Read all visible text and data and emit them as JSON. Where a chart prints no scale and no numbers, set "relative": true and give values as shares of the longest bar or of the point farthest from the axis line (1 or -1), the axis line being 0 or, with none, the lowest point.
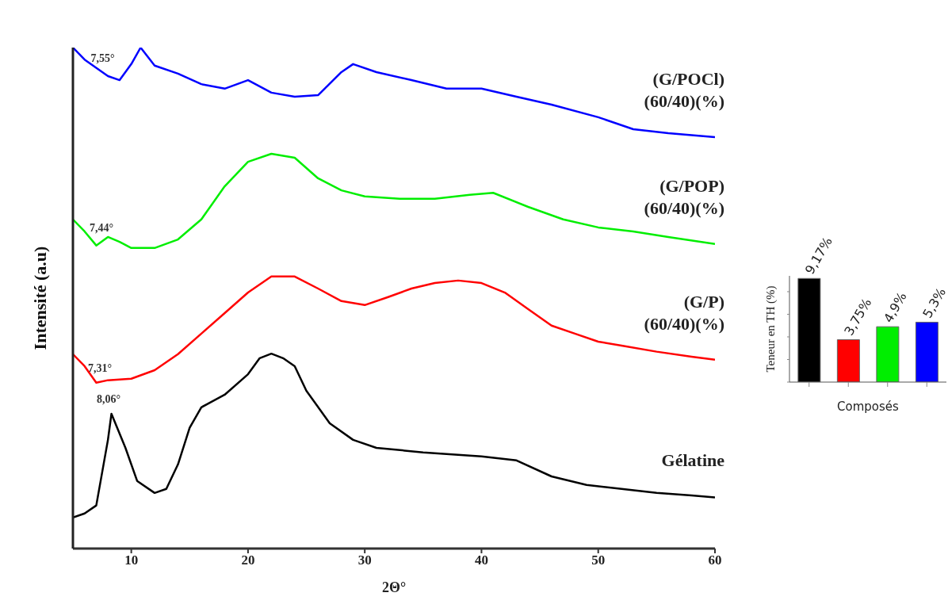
{
  "chart_data": [
    {
      "type": "line",
      "xlabel": "2Θ°",
      "ylabel": "Intensité (a.u)",
      "relative": true,
      "xlim": [
        5,
        60
      ],
      "xticks": [
        10,
        20,
        30,
        40,
        50,
        60
      ],
      "tick_labels": "x",
      "series": [
        {
          "name": "(G/POCl) (60/40)(%)",
          "color": "#0000ff",
          "x": [
            5,
            6,
            8,
            9,
            10,
            10.8,
            12,
            14,
            16,
            18,
            20,
            22,
            24,
            26,
            28,
            29,
            31,
            34,
            37,
            40,
            43,
            46,
            50,
            53,
            56,
            60
          ],
          "values": [
            1.0,
            0.976,
            0.943,
            0.935,
            0.967,
            1.0,
            0.964,
            0.948,
            0.927,
            0.918,
            0.935,
            0.91,
            0.902,
            0.905,
            0.951,
            0.967,
            0.951,
            0.935,
            0.918,
            0.918,
            0.902,
            0.886,
            0.861,
            0.837,
            0.829,
            0.821
          ]
        },
        {
          "name": "(G/POP) (60/40)(%)",
          "color": "#00ee00",
          "x": [
            5,
            6,
            7,
            8,
            9,
            10,
            12,
            14,
            16,
            18,
            20,
            22,
            24,
            26,
            28,
            30,
            33,
            36,
            39,
            41,
            44,
            47,
            50,
            53,
            56,
            60
          ],
          "values": [
            0.657,
            0.633,
            0.605,
            0.622,
            0.612,
            0.6,
            0.6,
            0.617,
            0.657,
            0.723,
            0.772,
            0.788,
            0.78,
            0.739,
            0.715,
            0.703,
            0.698,
            0.698,
            0.706,
            0.71,
            0.682,
            0.657,
            0.641,
            0.633,
            0.622,
            0.608
          ]
        },
        {
          "name": "(G/P) (60/40)(%)",
          "color": "#ff0000",
          "x": [
            5,
            6,
            7,
            8,
            10,
            12,
            14,
            16,
            18,
            20,
            22,
            24,
            26,
            28,
            30,
            32,
            34,
            36,
            38,
            40,
            42,
            44,
            46,
            48,
            50,
            52,
            55,
            58,
            60
          ],
          "values": [
            0.388,
            0.364,
            0.331,
            0.336,
            0.339,
            0.356,
            0.388,
            0.429,
            0.47,
            0.511,
            0.543,
            0.543,
            0.519,
            0.494,
            0.486,
            0.502,
            0.519,
            0.53,
            0.535,
            0.53,
            0.511,
            0.478,
            0.445,
            0.429,
            0.413,
            0.405,
            0.393,
            0.383,
            0.377
          ]
        },
        {
          "name": "Gélatine",
          "color": "#000000",
          "x": [
            5,
            6,
            7,
            8,
            8.3,
            9.5,
            10.5,
            12,
            13,
            14,
            15,
            16,
            18,
            20,
            21,
            22,
            23,
            24,
            25,
            27,
            29,
            31,
            35,
            40,
            43,
            46,
            49,
            52,
            55,
            58,
            60
          ],
          "values": [
            0.062,
            0.07,
            0.086,
            0.217,
            0.269,
            0.201,
            0.135,
            0.111,
            0.119,
            0.168,
            0.241,
            0.282,
            0.307,
            0.348,
            0.38,
            0.389,
            0.38,
            0.364,
            0.315,
            0.25,
            0.217,
            0.201,
            0.192,
            0.184,
            0.176,
            0.144,
            0.127,
            0.119,
            0.111,
            0.106,
            0.102
          ]
        }
      ],
      "annotations": [
        {
          "text": "7,55°",
          "x": 7.55,
          "y": 0.95
        },
        {
          "text": "7,44°",
          "x": 7.44,
          "y": 0.61
        },
        {
          "text": "7,31°",
          "x": 7.31,
          "y": 0.33
        },
        {
          "text": "8,06°",
          "x": 8.06,
          "y": 0.269
        }
      ]
    },
    {
      "type": "bar",
      "xlabel": "Composés",
      "ylabel": "Teneur en TH (%)",
      "categories": [
        null,
        null,
        null,
        null
      ],
      "values": [
        9.17,
        3.75,
        4.9,
        5.3
      ],
      "colors": [
        "#000000",
        "#ff0000",
        "#00ee00",
        "#0000ff"
      ],
      "value_labels": [
        "9,17%",
        "3,75%",
        "4,9%",
        "5,3%"
      ],
      "ylim": [
        0,
        9.4
      ],
      "yticks": [
        {
          "value": 0,
          "label": null
        },
        {
          "value": 2,
          "label": null
        },
        {
          "value": 4,
          "label": null
        },
        {
          "value": 6,
          "label": null
        },
        {
          "value": 8,
          "label": null
        }
      ],
      "tick_labels": false
    }
  ]
}
